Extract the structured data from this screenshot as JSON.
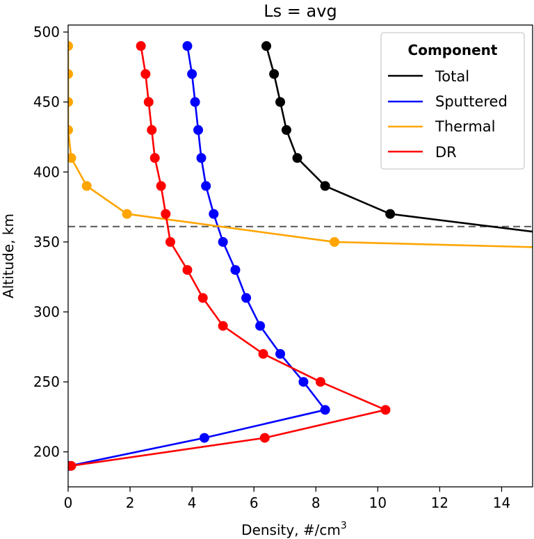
{
  "chart_data": {
    "type": "line",
    "title": "Ls = avg",
    "xlabel": "Density, #/cm",
    "xlabel_superscript": "3",
    "ylabel": "Altitude, km",
    "xlim": [
      0,
      15
    ],
    "ylim": [
      175,
      505
    ],
    "xticks": [
      0,
      2,
      4,
      6,
      8,
      10,
      12,
      14
    ],
    "yticks": [
      200,
      250,
      300,
      350,
      400,
      450,
      500
    ],
    "xtick_labels": [
      "0",
      "2",
      "4",
      "6",
      "8",
      "10",
      "12",
      "14"
    ],
    "ytick_labels": [
      "200",
      "250",
      "300",
      "350",
      "400",
      "450",
      "500"
    ],
    "grid": false,
    "hline": {
      "y": 361,
      "style": "dashed",
      "color": "#555555"
    },
    "legend": {
      "title": "Component",
      "placement": "top-right",
      "entries": [
        "Total",
        "Sputtered",
        "Thermal",
        "DR"
      ]
    },
    "series": [
      {
        "name": "Total",
        "color": "#000000",
        "points": [
          [
            6.4,
            490
          ],
          [
            6.65,
            470
          ],
          [
            6.85,
            450
          ],
          [
            7.05,
            430
          ],
          [
            7.4,
            410
          ],
          [
            8.3,
            390
          ],
          [
            10.4,
            370
          ],
          [
            15.5,
            356
          ]
        ],
        "markers": [
          [
            6.4,
            490
          ],
          [
            6.65,
            470
          ],
          [
            6.85,
            450
          ],
          [
            7.05,
            430
          ],
          [
            7.4,
            410
          ],
          [
            8.3,
            390
          ],
          [
            10.4,
            370
          ]
        ]
      },
      {
        "name": "Sputtered",
        "color": "#0000ff",
        "points": [
          [
            3.85,
            490
          ],
          [
            4.0,
            470
          ],
          [
            4.1,
            450
          ],
          [
            4.2,
            430
          ],
          [
            4.3,
            410
          ],
          [
            4.45,
            390
          ],
          [
            4.7,
            370
          ],
          [
            5.0,
            350
          ],
          [
            5.4,
            330
          ],
          [
            5.75,
            310
          ],
          [
            6.2,
            290
          ],
          [
            6.85,
            270
          ],
          [
            7.6,
            250
          ],
          [
            8.3,
            230
          ],
          [
            4.4,
            210
          ],
          [
            0.05,
            190
          ]
        ],
        "markers": [
          [
            3.85,
            490
          ],
          [
            4.0,
            470
          ],
          [
            4.1,
            450
          ],
          [
            4.2,
            430
          ],
          [
            4.3,
            410
          ],
          [
            4.45,
            390
          ],
          [
            4.7,
            370
          ],
          [
            5.0,
            350
          ],
          [
            5.4,
            330
          ],
          [
            5.75,
            310
          ],
          [
            6.2,
            290
          ],
          [
            6.85,
            270
          ],
          [
            7.6,
            250
          ],
          [
            8.3,
            230
          ],
          [
            4.4,
            210
          ],
          [
            0.05,
            190
          ]
        ]
      },
      {
        "name": "Thermal",
        "color": "#ffa500",
        "points": [
          [
            0.0,
            490
          ],
          [
            0.0,
            470
          ],
          [
            0.0,
            450
          ],
          [
            0.0,
            430
          ],
          [
            0.1,
            410
          ],
          [
            0.6,
            390
          ],
          [
            1.9,
            370
          ],
          [
            8.6,
            350
          ],
          [
            15.5,
            346
          ]
        ],
        "markers": [
          [
            0.0,
            490
          ],
          [
            0.0,
            470
          ],
          [
            0.0,
            450
          ],
          [
            0.0,
            430
          ],
          [
            0.1,
            410
          ],
          [
            0.6,
            390
          ],
          [
            1.9,
            370
          ],
          [
            8.6,
            350
          ]
        ]
      },
      {
        "name": "DR",
        "color": "#ff0000",
        "points": [
          [
            2.35,
            490
          ],
          [
            2.5,
            470
          ],
          [
            2.6,
            450
          ],
          [
            2.7,
            430
          ],
          [
            2.8,
            410
          ],
          [
            3.0,
            390
          ],
          [
            3.15,
            370
          ],
          [
            3.3,
            350
          ],
          [
            3.85,
            330
          ],
          [
            4.35,
            310
          ],
          [
            5.0,
            290
          ],
          [
            6.3,
            270
          ],
          [
            8.15,
            250
          ],
          [
            10.25,
            230
          ],
          [
            6.35,
            210
          ],
          [
            0.1,
            190
          ]
        ],
        "markers": [
          [
            2.35,
            490
          ],
          [
            2.5,
            470
          ],
          [
            2.6,
            450
          ],
          [
            2.7,
            430
          ],
          [
            2.8,
            410
          ],
          [
            3.0,
            390
          ],
          [
            3.15,
            370
          ],
          [
            3.3,
            350
          ],
          [
            3.85,
            330
          ],
          [
            4.35,
            310
          ],
          [
            5.0,
            290
          ],
          [
            6.3,
            270
          ],
          [
            8.15,
            250
          ],
          [
            10.25,
            230
          ],
          [
            6.35,
            210
          ],
          [
            0.1,
            190
          ]
        ]
      }
    ]
  }
}
